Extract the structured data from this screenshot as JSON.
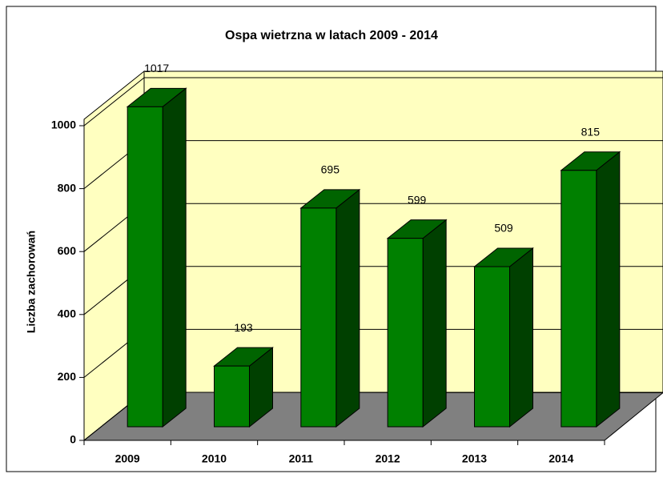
{
  "chart_data": {
    "type": "bar3d",
    "title": "Ospa wietrzna w latach 2009 - 2014",
    "y_label": "Liczba zachorowań",
    "categories": [
      "2009",
      "2010",
      "2011",
      "2012",
      "2013",
      "2014"
    ],
    "values": [
      1017,
      193,
      695,
      599,
      509,
      815
    ],
    "color": "#008000",
    "wall_color": "#ffffc0",
    "floor_color": "#808080",
    "ylim": [
      0,
      1000
    ],
    "yticks": [
      0,
      200,
      400,
      600,
      800,
      1000
    ],
    "grid": true
  }
}
